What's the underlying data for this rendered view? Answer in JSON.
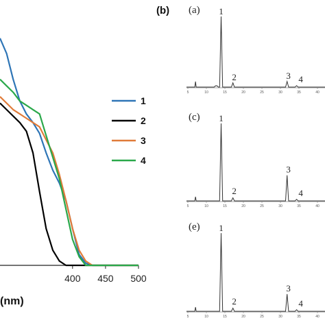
{
  "chart_data": [
    {
      "type": "line",
      "panel": "",
      "xlabel": "(nm)",
      "ylabel": "",
      "xlim": [
        290,
        500
      ],
      "ylim": [
        0,
        1.1
      ],
      "x_ticks": [
        400,
        450,
        500
      ],
      "legend_placement": "right",
      "series": [
        {
          "name": "1",
          "color": "#2e75b6",
          "x": [
            290,
            300,
            310,
            320,
            330,
            340,
            350,
            360,
            370,
            380,
            390,
            400,
            410,
            420,
            430,
            450,
            500
          ],
          "y": [
            1.05,
            0.98,
            0.86,
            0.76,
            0.7,
            0.66,
            0.61,
            0.52,
            0.44,
            0.38,
            0.3,
            0.17,
            0.05,
            0.01,
            0.0,
            0.0,
            0.0
          ]
        },
        {
          "name": "2",
          "color": "#000000",
          "x": [
            290,
            300,
            310,
            320,
            330,
            340,
            350,
            360,
            370,
            380,
            390,
            400,
            410,
            450,
            500
          ],
          "y": [
            0.75,
            0.72,
            0.69,
            0.66,
            0.62,
            0.52,
            0.34,
            0.17,
            0.07,
            0.02,
            0.0,
            0.0,
            0.0,
            0.0,
            0.0
          ]
        },
        {
          "name": "3",
          "color": "#e07b39",
          "x": [
            290,
            300,
            310,
            320,
            330,
            340,
            350,
            360,
            370,
            380,
            390,
            400,
            410,
            420,
            430,
            450,
            500
          ],
          "y": [
            0.78,
            0.75,
            0.72,
            0.7,
            0.68,
            0.66,
            0.64,
            0.58,
            0.52,
            0.42,
            0.3,
            0.17,
            0.07,
            0.02,
            0.0,
            0.0,
            0.0
          ]
        },
        {
          "name": "4",
          "color": "#2aa84a",
          "x": [
            290,
            300,
            310,
            320,
            330,
            340,
            350,
            360,
            370,
            380,
            390,
            400,
            410,
            420,
            450,
            500
          ],
          "y": [
            0.86,
            0.83,
            0.8,
            0.76,
            0.74,
            0.72,
            0.7,
            0.6,
            0.5,
            0.4,
            0.26,
            0.12,
            0.04,
            0.0,
            0.0,
            0.0
          ]
        }
      ]
    },
    {
      "type": "line",
      "panel": "(b)",
      "subplots": [
        {
          "label": "(a)",
          "peaks": [
            {
              "label": "1",
              "x": 0.25,
              "h": 1.0
            },
            {
              "label": "2",
              "x": 0.335,
              "h": 0.06
            },
            {
              "label": "3",
              "x": 0.726,
              "h": 0.08
            },
            {
              "label": "4",
              "x": 0.795,
              "h": 0.02
            }
          ]
        },
        {
          "label": "(c)",
          "peaks": [
            {
              "label": "1",
              "x": 0.25,
              "h": 1.0
            },
            {
              "label": "2",
              "x": 0.335,
              "h": 0.04
            },
            {
              "label": "3",
              "x": 0.726,
              "h": 0.33
            },
            {
              "label": "4",
              "x": 0.795,
              "h": 0.02
            }
          ]
        },
        {
          "label": "(e)",
          "peaks": [
            {
              "label": "1",
              "x": 0.25,
              "h": 1.0
            },
            {
              "label": "2",
              "x": 0.335,
              "h": 0.04
            },
            {
              "label": "3",
              "x": 0.726,
              "h": 0.22
            },
            {
              "label": "4",
              "x": 0.795,
              "h": 0.02
            }
          ]
        }
      ],
      "x_ticks": [
        "5",
        "10",
        "15",
        "20",
        "25",
        "30",
        "35",
        "40"
      ]
    }
  ]
}
